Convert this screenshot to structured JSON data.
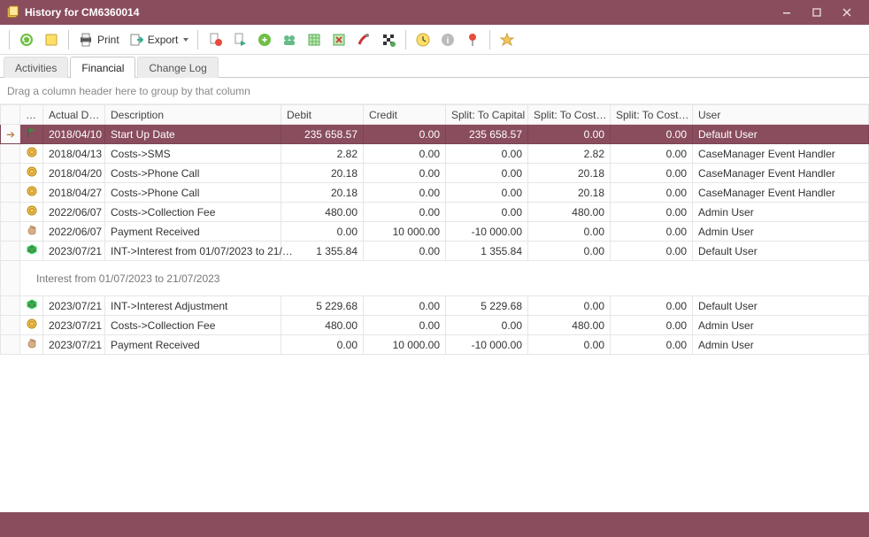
{
  "window": {
    "title": "History for CM6360014"
  },
  "toolbar": {
    "print_label": "Print",
    "export_label": "Export"
  },
  "tabs": {
    "activities": "Activities",
    "financial": "Financial",
    "changelog": "Change Log",
    "active": "financial"
  },
  "groupbar": {
    "hint": "Drag a column header here to group by that column"
  },
  "grid": {
    "columns": {
      "actual_date": "Actual D…",
      "description": "Description",
      "debit": "Debit",
      "credit": "Credit",
      "split_capital": "Split: To Capital",
      "split_cost1": "Split: To Cost…",
      "split_cost2": "Split: To Cost…",
      "user": "User"
    },
    "rows": [
      {
        "selected": true,
        "icon": "flag-green",
        "date": "2018/04/10",
        "desc": "Start Up Date",
        "debit": "235 658.57",
        "credit": "0.00",
        "cap": "235 658.57",
        "cost1": "0.00",
        "cost2": "0.00",
        "user": "Default User"
      },
      {
        "selected": false,
        "icon": "coin",
        "date": "2018/04/13",
        "desc": "Costs->SMS",
        "debit": "2.82",
        "credit": "0.00",
        "cap": "0.00",
        "cost1": "2.82",
        "cost2": "0.00",
        "user": "CaseManager Event Handler"
      },
      {
        "selected": false,
        "icon": "coin",
        "date": "2018/04/20",
        "desc": "Costs->Phone Call",
        "debit": "20.18",
        "credit": "0.00",
        "cap": "0.00",
        "cost1": "20.18",
        "cost2": "0.00",
        "user": "CaseManager Event Handler"
      },
      {
        "selected": false,
        "icon": "coin",
        "date": "2018/04/27",
        "desc": "Costs->Phone Call",
        "debit": "20.18",
        "credit": "0.00",
        "cap": "0.00",
        "cost1": "20.18",
        "cost2": "0.00",
        "user": "CaseManager Event Handler"
      },
      {
        "selected": false,
        "icon": "coin",
        "date": "2022/06/07",
        "desc": "Costs->Collection Fee",
        "debit": "480.00",
        "credit": "0.00",
        "cap": "0.00",
        "cost1": "480.00",
        "cost2": "0.00",
        "user": "Admin User"
      },
      {
        "selected": false,
        "icon": "hand",
        "date": "2022/06/07",
        "desc": "Payment Received",
        "debit": "0.00",
        "credit": "10 000.00",
        "cap": "-10 000.00",
        "cost1": "0.00",
        "cost2": "0.00",
        "user": "Admin User"
      },
      {
        "selected": false,
        "icon": "cube",
        "date": "2023/07/21",
        "desc": "INT->Interest from 01/07/2023 to 21/…",
        "debit": "1 355.84",
        "credit": "0.00",
        "cap": "1 355.84",
        "cost1": "0.00",
        "cost2": "0.00",
        "user": "Default User"
      }
    ],
    "detail_text": "Interest from 01/07/2023 to 21/07/2023",
    "rows2": [
      {
        "selected": false,
        "icon": "cube",
        "date": "2023/07/21",
        "desc": "INT->Interest Adjustment",
        "debit": "5 229.68",
        "credit": "0.00",
        "cap": "5 229.68",
        "cost1": "0.00",
        "cost2": "0.00",
        "user": "Default User"
      },
      {
        "selected": false,
        "icon": "coin",
        "date": "2023/07/21",
        "desc": "Costs->Collection Fee",
        "debit": "480.00",
        "credit": "0.00",
        "cap": "0.00",
        "cost1": "480.00",
        "cost2": "0.00",
        "user": "Admin User"
      },
      {
        "selected": false,
        "icon": "hand",
        "date": "2023/07/21",
        "desc": "Payment Received",
        "debit": "0.00",
        "credit": "10 000.00",
        "cap": "-10 000.00",
        "cost1": "0.00",
        "cost2": "0.00",
        "user": "Admin User"
      }
    ]
  },
  "colors": {
    "accent": "#8a4d5e"
  }
}
